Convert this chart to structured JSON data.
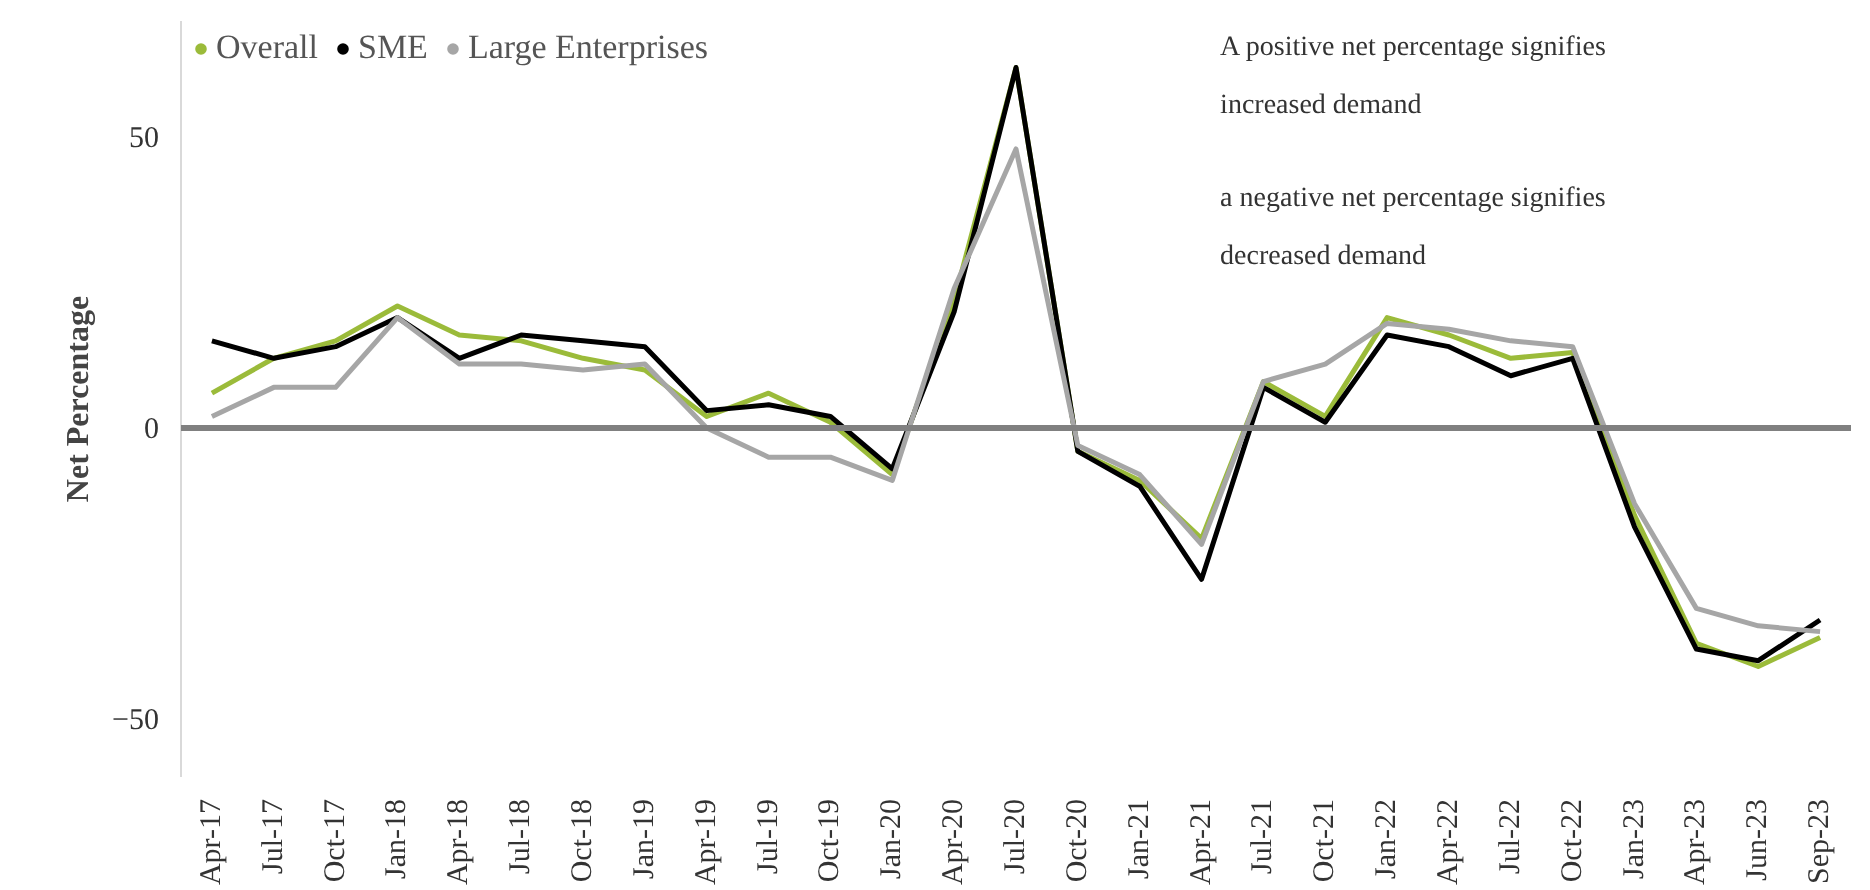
{
  "chart_data": {
    "type": "line",
    "ylabel": "Net Percentage",
    "categories": [
      "Apr-17",
      "Jul-17",
      "Oct-17",
      "Jan-18",
      "Apr-18",
      "Jul-18",
      "Oct-18",
      "Jan-19",
      "Apr-19",
      "Jul-19",
      "Oct-19",
      "Jan-20",
      "Apr-20",
      "Jul-20",
      "Oct-20",
      "Jan-21",
      "Apr-21",
      "Jul-21",
      "Oct-21",
      "Jan-22",
      "Apr-22",
      "Jul-22",
      "Oct-22",
      "Jan-23",
      "Apr-23",
      "Jun-23",
      "Sep-23"
    ],
    "series": [
      {
        "name": "Overall",
        "color": "#9bbb3a",
        "values": [
          6,
          12,
          15,
          21,
          16,
          15,
          12,
          10,
          2,
          6,
          1,
          -8,
          22,
          62,
          -4,
          -9,
          -19,
          8,
          2,
          19,
          16,
          12,
          13,
          -15,
          -37,
          -41,
          -36
        ]
      },
      {
        "name": "SME",
        "color": "#000000",
        "values": [
          15,
          12,
          14,
          19,
          12,
          16,
          15,
          14,
          3,
          4,
          2,
          -7,
          20,
          62,
          -4,
          -10,
          -26,
          7,
          1,
          16,
          14,
          9,
          12,
          -17,
          -38,
          -40,
          -33
        ]
      },
      {
        "name": "Large Enterprises",
        "color": "#a6a6a6",
        "values": [
          2,
          7,
          7,
          19,
          11,
          11,
          10,
          11,
          0,
          -5,
          -5,
          -9,
          24,
          48,
          -3,
          -8,
          -20,
          8,
          11,
          18,
          17,
          15,
          14,
          -13,
          -31,
          -34,
          -35
        ]
      }
    ],
    "ylim": [
      -60,
      70
    ],
    "yticks": [
      -50,
      0,
      50
    ],
    "ref_lines": [
      {
        "axis": "y",
        "value": 0,
        "color": "#808080"
      }
    ],
    "legend": "top left",
    "grid": false,
    "line_style": "solid",
    "annotations": [
      "A positive net percentage signifies increased demand",
      "a negative net percentage signifies decreased demand"
    ]
  }
}
